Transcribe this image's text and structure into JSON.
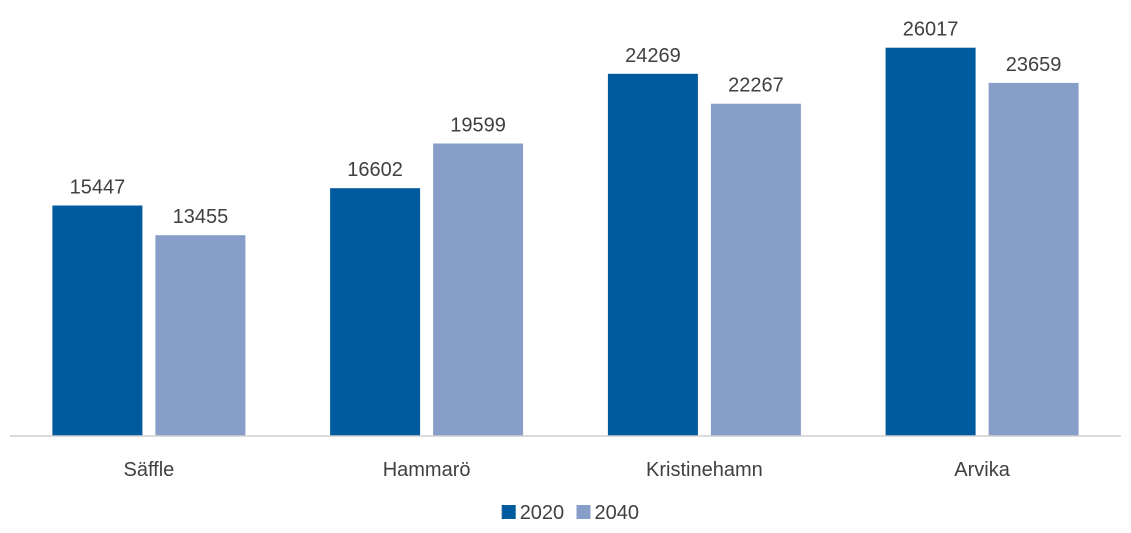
{
  "chart_data": {
    "type": "bar",
    "title": "",
    "xlabel": "",
    "ylabel": "",
    "categories": [
      "Säffle",
      "Hammarö",
      "Kristinehamn",
      "Arvika"
    ],
    "series": [
      {
        "name": "2020",
        "values": [
          15447,
          16602,
          24269,
          26017
        ],
        "color": "#005a9e"
      },
      {
        "name": "2040",
        "values": [
          13455,
          19599,
          22267,
          23659
        ],
        "color": "#879fc8"
      }
    ],
    "ylim": [
      0,
      26500
    ],
    "grid": false,
    "show_data_labels": true,
    "legend": {
      "position": "bottom"
    }
  }
}
